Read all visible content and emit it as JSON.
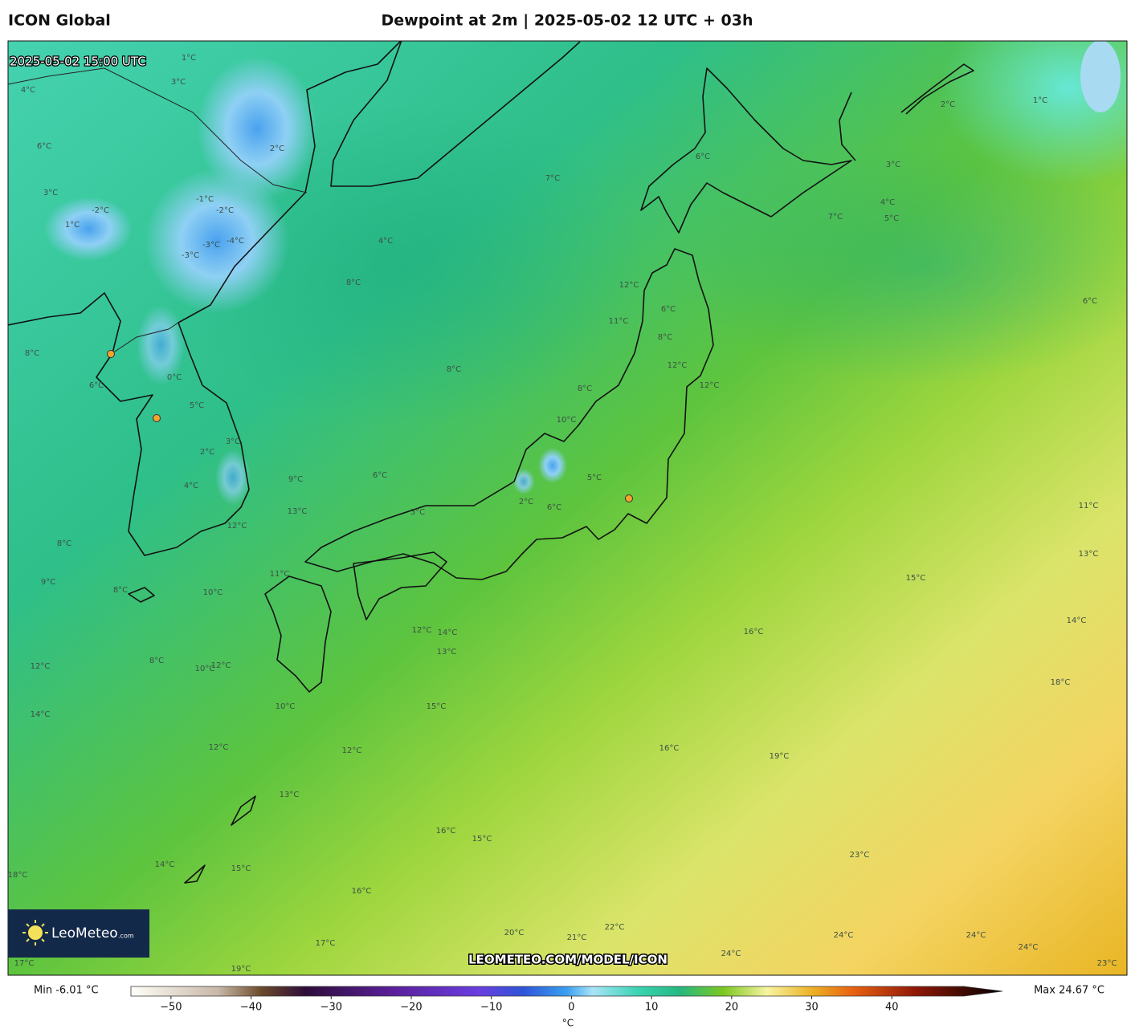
{
  "header": {
    "model": "ICON Global",
    "title": "Dewpoint at 2m | 2025-05-02 12 UTC + 03h"
  },
  "map": {
    "valid_time": "2025-05-02 15:00 UTC",
    "contour_labels": [
      "1°C",
      "-1°C",
      "-2°C",
      "-3°C",
      "-4°C",
      "-3°C",
      "-2°C",
      "1°C",
      "2°C",
      "3°C",
      "4°C",
      "6°C",
      "8°C",
      "6°C",
      "0°C",
      "5°C",
      "3°C",
      "2°C",
      "4°C",
      "9°C",
      "13°C",
      "12°C",
      "8°C",
      "9°C",
      "10°C",
      "11°C",
      "8°C",
      "8°C",
      "10°C",
      "12°C",
      "12°C",
      "14°C",
      "10°C",
      "12°C",
      "12°C",
      "13°C",
      "15°C",
      "12°C",
      "14°C",
      "13°C",
      "16°C",
      "15°C",
      "14°C",
      "15°C",
      "16°C",
      "17°C",
      "18°C",
      "17°C",
      "19°C",
      "20°C",
      "21°C",
      "22°C",
      "24°C",
      "24°C",
      "24°C",
      "24°C",
      "23°C",
      "23°C",
      "19°C",
      "16°C",
      "16°C",
      "18°C",
      "15°C",
      "14°C",
      "13°C",
      "11°C",
      "12°C",
      "12°C",
      "11°C",
      "8°C",
      "12°C",
      "6°C",
      "6°C",
      "5°C",
      "4°C",
      "3°C",
      "2°C",
      "1°C",
      "7°C",
      "8°C",
      "8°C",
      "8°C",
      "10°C",
      "4°C",
      "7°C",
      "6°C",
      "5°C",
      "2°C",
      "6°C",
      "5°C",
      "3°C",
      "6°C"
    ],
    "watermark": "LEOMETEO.COM/MODEL/ICON",
    "logo": {
      "name": "LeoMeteo",
      "suffix": ".com"
    }
  },
  "colorbar": {
    "min_label": "Min -6.01 °C",
    "max_label": "Max 24.67 °C",
    "unit": "°C",
    "lim": [
      -55,
      49
    ],
    "ticks": [
      {
        "value": -50,
        "label": "−50"
      },
      {
        "value": -40,
        "label": "−40"
      },
      {
        "value": -30,
        "label": "−30"
      },
      {
        "value": -20,
        "label": "−20"
      },
      {
        "value": -10,
        "label": "−10"
      },
      0,
      10,
      20,
      30,
      40
    ]
  }
}
